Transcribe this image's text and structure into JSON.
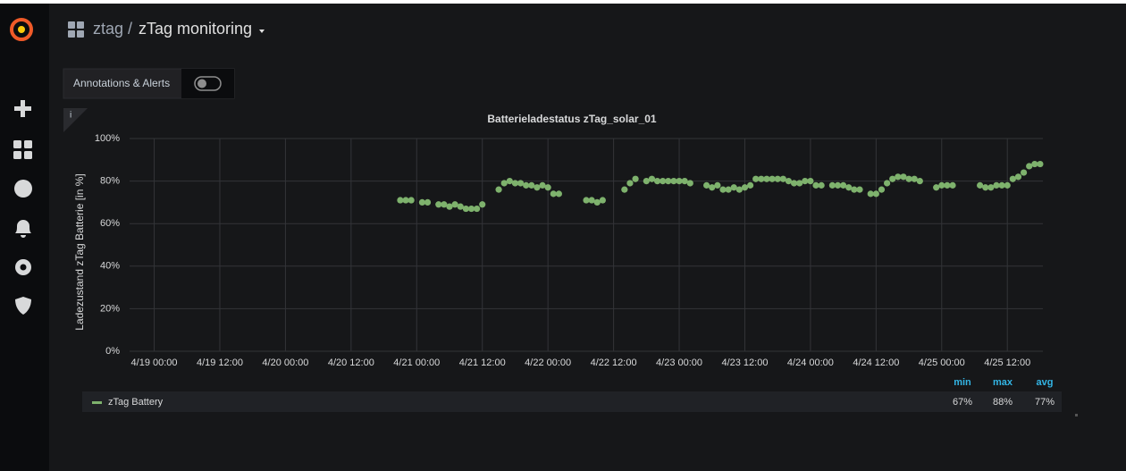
{
  "header": {
    "folder": "ztag",
    "separator": "/",
    "dashboard": "zTag monitoring"
  },
  "toolbar": {
    "toggle_label": "Annotations & Alerts"
  },
  "panel": {
    "info_icon": "i"
  },
  "chart_data": {
    "type": "scatter",
    "title": "Batterieladestatus zTag_solar_01",
    "y_label": "Ladezustand zTag Batterie [in %]",
    "x": [
      "4/20 21:00",
      "4/20 22:00",
      "4/20 23:00",
      "4/21 01:00",
      "4/21 02:00",
      "4/21 04:00",
      "4/21 05:00",
      "4/21 06:00",
      "4/21 07:00",
      "4/21 08:00",
      "4/21 09:00",
      "4/21 10:00",
      "4/21 11:00",
      "4/21 12:00",
      "4/21 15:00",
      "4/21 16:00",
      "4/21 17:00",
      "4/21 18:00",
      "4/21 19:00",
      "4/21 20:00",
      "4/21 21:00",
      "4/21 22:00",
      "4/21 23:00",
      "4/22 00:00",
      "4/22 01:00",
      "4/22 02:00",
      "4/22 07:00",
      "4/22 08:00",
      "4/22 09:00",
      "4/22 10:00",
      "4/22 14:00",
      "4/22 15:00",
      "4/22 16:00",
      "4/22 18:00",
      "4/22 19:00",
      "4/22 20:00",
      "4/22 21:00",
      "4/22 22:00",
      "4/22 23:00",
      "4/23 00:00",
      "4/23 01:00",
      "4/23 02:00",
      "4/23 05:00",
      "4/23 06:00",
      "4/23 07:00",
      "4/23 08:00",
      "4/23 09:00",
      "4/23 10:00",
      "4/23 11:00",
      "4/23 12:00",
      "4/23 13:00",
      "4/23 14:00",
      "4/23 15:00",
      "4/23 16:00",
      "4/23 17:00",
      "4/23 18:00",
      "4/23 19:00",
      "4/23 20:00",
      "4/23 21:00",
      "4/23 22:00",
      "4/23 23:00",
      "4/24 00:00",
      "4/24 01:00",
      "4/24 02:00",
      "4/24 04:00",
      "4/24 05:00",
      "4/24 06:00",
      "4/24 07:00",
      "4/24 08:00",
      "4/24 09:00",
      "4/24 11:00",
      "4/24 12:00",
      "4/24 13:00",
      "4/24 14:00",
      "4/24 15:00",
      "4/24 16:00",
      "4/24 17:00",
      "4/24 18:00",
      "4/24 19:00",
      "4/24 20:00",
      "4/24 23:00",
      "4/25 00:00",
      "4/25 01:00",
      "4/25 02:00",
      "4/25 07:00",
      "4/25 08:00",
      "4/25 09:00",
      "4/25 10:00",
      "4/25 11:00",
      "4/25 12:00",
      "4/25 13:00",
      "4/25 14:00",
      "4/25 15:00",
      "4/25 16:00",
      "4/25 17:00",
      "4/25 18:00"
    ],
    "series": [
      {
        "name": "zTag Battery",
        "color": "#7eb26d",
        "values": [
          71,
          71,
          71,
          70,
          70,
          69,
          69,
          68,
          69,
          68,
          67,
          67,
          67,
          69,
          76,
          79,
          80,
          79,
          79,
          78,
          78,
          77,
          78,
          77,
          74,
          74,
          71,
          71,
          70,
          71,
          76,
          79,
          81,
          80,
          81,
          80,
          80,
          80,
          80,
          80,
          80,
          79,
          78,
          77,
          78,
          76,
          76,
          77,
          76,
          77,
          78,
          81,
          81,
          81,
          81,
          81,
          81,
          80,
          79,
          79,
          80,
          80,
          78,
          78,
          78,
          78,
          78,
          77,
          76,
          76,
          74,
          74,
          76,
          79,
          81,
          82,
          82,
          81,
          81,
          80,
          77,
          78,
          78,
          78,
          78,
          77,
          77,
          78,
          78,
          78,
          81,
          82,
          84,
          87,
          88,
          88
        ]
      }
    ],
    "xlim": [
      "4/18 19:30",
      "4/25 18:30"
    ],
    "xticks": [
      "4/19 00:00",
      "4/19 12:00",
      "4/20 00:00",
      "4/20 12:00",
      "4/21 00:00",
      "4/21 12:00",
      "4/22 00:00",
      "4/22 12:00",
      "4/23 00:00",
      "4/23 12:00",
      "4/24 00:00",
      "4/24 12:00",
      "4/25 00:00",
      "4/25 12:00"
    ],
    "ylim": [
      0,
      100
    ],
    "yticks": [
      {
        "value": 0,
        "label": "0%"
      },
      {
        "value": 20,
        "label": "20%"
      },
      {
        "value": 40,
        "label": "40%"
      },
      {
        "value": 60,
        "label": "60%"
      },
      {
        "value": 80,
        "label": "80%"
      },
      {
        "value": 100,
        "label": "100%"
      }
    ],
    "grid": true,
    "legend_stats": {
      "headers": [
        "min",
        "max",
        "avg"
      ],
      "values": [
        {
          "value": 67,
          "label": "67%"
        },
        {
          "value": 88,
          "label": "88%"
        },
        {
          "value": 77,
          "label": "77%"
        }
      ]
    }
  }
}
